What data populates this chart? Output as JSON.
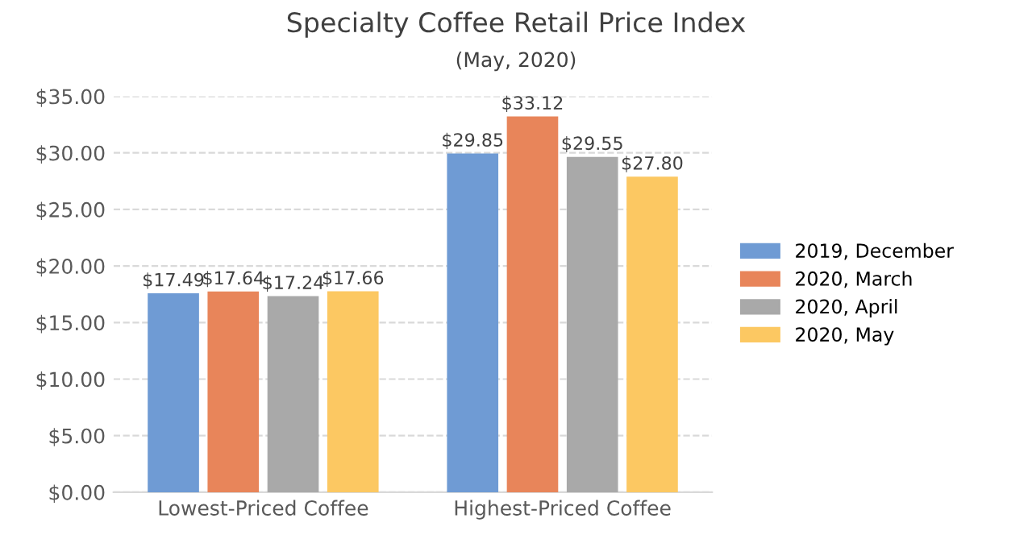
{
  "chart_data": {
    "type": "bar",
    "title": "Specialty Coffee Retail Price Index",
    "subtitle": "(May, 2020)",
    "categories": [
      "Lowest-Priced Coffee",
      "Highest-Priced Coffee"
    ],
    "series": [
      {
        "name": "2019, December",
        "color": "#6f9bd4",
        "values": [
          17.49,
          29.85
        ],
        "value_labels": [
          "$17.49",
          "$29.85"
        ]
      },
      {
        "name": "2020, March",
        "color": "#e8855a",
        "values": [
          17.64,
          33.12
        ],
        "value_labels": [
          "$17.64",
          "$33.12"
        ]
      },
      {
        "name": "2020, April",
        "color": "#a9a9a9",
        "values": [
          17.24,
          29.55
        ],
        "value_labels": [
          "$17.24",
          "$29.55"
        ]
      },
      {
        "name": "2020, May",
        "color": "#fcc862",
        "values": [
          17.66,
          27.8
        ],
        "value_labels": [
          "$17.66",
          "$27.80"
        ]
      }
    ],
    "ylim": [
      0,
      35
    ],
    "yticks": [
      {
        "value": 0,
        "label": "$0.00"
      },
      {
        "value": 5,
        "label": "$5.00"
      },
      {
        "value": 10,
        "label": "$10.00"
      },
      {
        "value": 15,
        "label": "$15.00"
      },
      {
        "value": 20,
        "label": "$20.00"
      },
      {
        "value": 25,
        "label": "$25.00"
      },
      {
        "value": 30,
        "label": "$30.00"
      },
      {
        "value": 35,
        "label": "$35.00"
      }
    ],
    "grid": "y",
    "legend": "right"
  }
}
